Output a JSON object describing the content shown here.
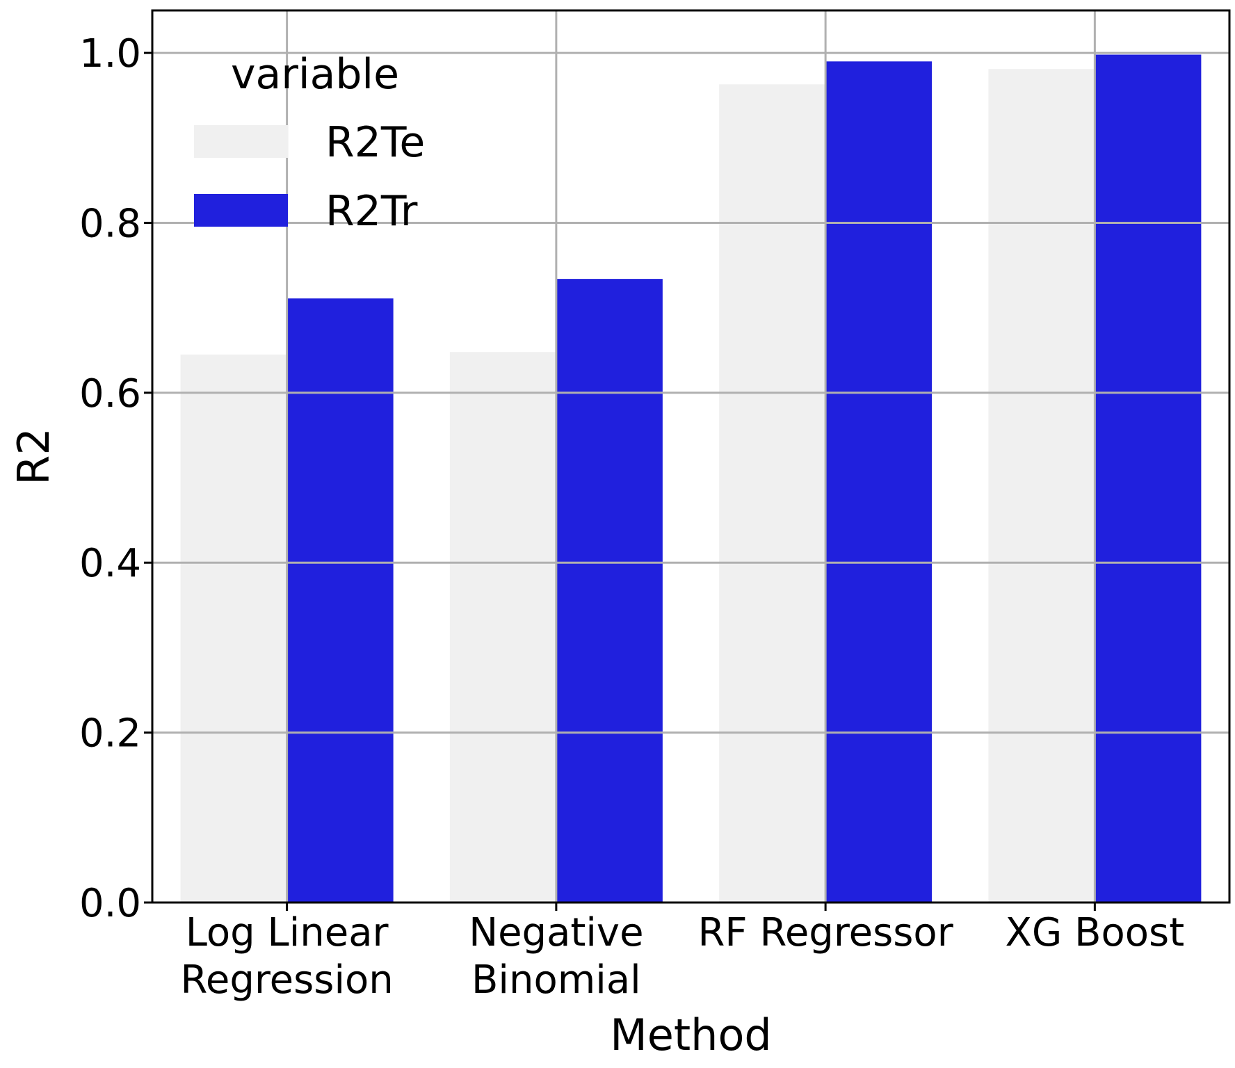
{
  "chart_data": {
    "type": "bar",
    "xlabel": "Method",
    "ylabel": "R2",
    "categories": [
      [
        "Log Linear",
        "Regression"
      ],
      [
        "Negative",
        "Binomial"
      ],
      [
        "RF Regressor"
      ],
      [
        "XG Boost"
      ]
    ],
    "series": [
      {
        "name": "R2Te",
        "color": "#f0f0f0",
        "values": [
          0.645,
          0.648,
          0.963,
          0.981
        ]
      },
      {
        "name": "R2Tr",
        "color": "#2020dd",
        "values": [
          0.711,
          0.734,
          0.99,
          0.998
        ]
      }
    ],
    "ylim": [
      0,
      1.05
    ],
    "yticks": [
      "0.0",
      "0.2",
      "0.4",
      "0.6",
      "0.8",
      "1.0"
    ],
    "grid": true,
    "legend": {
      "title": "variable",
      "position": "top-left"
    }
  }
}
